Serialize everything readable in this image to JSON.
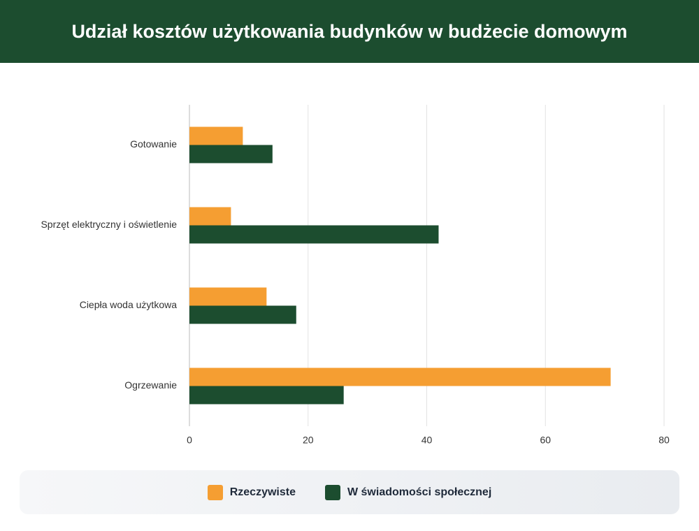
{
  "chart_data": {
    "type": "hbar",
    "title": "Udział kosztów użytkowania budynków w budżecie domowym",
    "categories": [
      "Gotowanie",
      "Sprzęt elektryczny i oświetlenie",
      "Ciepła woda użytkowa",
      "Ogrzewanie"
    ],
    "series": [
      {
        "name": "Rzeczywiste",
        "color": "#f59e32",
        "values": [
          9,
          7,
          13,
          71
        ]
      },
      {
        "name": "W świadomości społecznej",
        "color": "#1c4d2f",
        "values": [
          14,
          42,
          18,
          26
        ]
      }
    ],
    "xlim": [
      0,
      80
    ],
    "xticks": [
      0,
      20,
      40,
      60,
      80
    ],
    "grid": true,
    "legend": "bottom"
  }
}
